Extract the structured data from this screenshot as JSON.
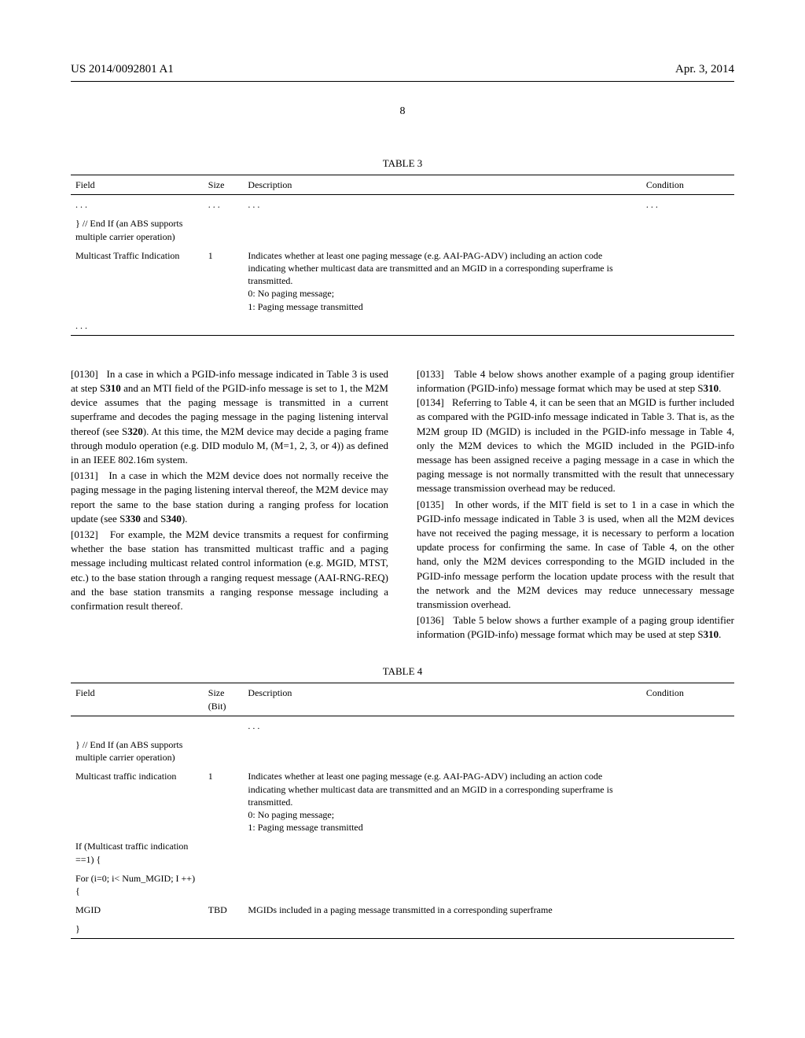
{
  "header": {
    "pub_number": "US 2014/0092801 A1",
    "pub_date": "Apr. 3, 2014",
    "page_number": "8"
  },
  "table3": {
    "caption": "TABLE 3",
    "columns": [
      "Field",
      "Size",
      "Description",
      "Condition"
    ],
    "rows": [
      {
        "field": ". . .",
        "size": ". . .",
        "desc": ". . .",
        "cond": ". . ."
      },
      {
        "field": "} // End If (an ABS supports multiple carrier operation)",
        "size": "",
        "desc": "",
        "cond": ""
      },
      {
        "field": "Multicast Traffic Indication",
        "size": "1",
        "desc": "Indicates whether at least one paging message (e.g. AAI-PAG-ADV) including an action code indicating whether multicast data are transmitted and an MGID in a corresponding superframe is transmitted.\n0: No paging message;\n1: Paging message transmitted",
        "cond": ""
      },
      {
        "field": ". . .",
        "size": "",
        "desc": "",
        "cond": ""
      }
    ]
  },
  "paragraphs_left": [
    {
      "num": "[0130]",
      "text": "In a case in which a PGID-info message indicated in Table 3 is used at step S310 and an MTI field of the PGID-info message is set to 1, the M2M device assumes that the paging message is transmitted in a current superframe and decodes the paging message in the paging listening interval thereof (see S320). At this time, the M2M device may decide a paging frame through modulo operation (e.g. DID modulo M, (M=1, 2, 3, or 4)) as defined in an IEEE 802.16m system."
    },
    {
      "num": "[0131]",
      "text": "In a case in which the M2M device does not normally receive the paging message in the paging listening interval thereof, the M2M device may report the same to the base station during a ranging profess for location update (see S330 and S340)."
    },
    {
      "num": "[0132]",
      "text": "For example, the M2M device transmits a request for confirming whether the base station has transmitted multicast traffic and a paging message including multicast related control information (e.g. MGID, MTST, etc.) to the base station through a ranging request message (AAI-RNG-REQ) and the base station transmits a ranging response message including a confirmation result thereof."
    },
    {
      "num": "[0133]",
      "text": "Table 4 below shows another example of a paging group identifier information (PGID-info) message format which may be used at step S310."
    }
  ],
  "paragraphs_right": [
    {
      "num": "[0134]",
      "text": "Referring to Table 4, it can be seen that an MGID is further included as compared with the PGID-info message indicated in Table 3. That is, as the M2M group ID (MGID) is included in the PGID-info message in Table 4, only the M2M devices to which the MGID included in the PGID-info message has been assigned receive a paging message in a case in which the paging message is not normally transmitted with the result that unnecessary message transmission overhead may be reduced."
    },
    {
      "num": "[0135]",
      "text": "In other words, if the MIT field is set to 1 in a case in which the PGID-info message indicated in Table 3 is used, when all the M2M devices have not received the paging message, it is necessary to perform a location update process for confirming the same. In case of Table 4, on the other hand, only the M2M devices corresponding to the MGID included in the PGID-info message perform the location update process with the result that the network and the M2M devices may reduce unnecessary message transmission overhead."
    },
    {
      "num": "[0136]",
      "text": "Table 5 below shows a further example of a paging group identifier information (PGID-info) message format which may be used at step S310."
    }
  ],
  "table4": {
    "caption": "TABLE 4",
    "columns": [
      "Field",
      "Size (Bit)",
      "Description",
      "Condition"
    ],
    "rows": [
      {
        "field": "",
        "size": "",
        "desc": ". . .",
        "cond": "",
        "center_desc": true
      },
      {
        "field": "} // End If (an ABS supports multiple carrier operation)",
        "size": "",
        "desc": "",
        "cond": ""
      },
      {
        "field": "Multicast traffic indication",
        "size": "1",
        "desc": "Indicates whether at least one paging message (e.g. AAI-PAG-ADV) including an action code indicating whether multicast data are transmitted and an MGID in a corresponding superframe is transmitted.\n0: No paging message;\n1: Paging message transmitted",
        "cond": ""
      },
      {
        "field": "If (Multicast traffic indication ==1) {",
        "size": "",
        "desc": "",
        "cond": ""
      },
      {
        "field": "For (i=0; i< Num_MGID; I ++) {",
        "size": "",
        "desc": "",
        "cond": ""
      },
      {
        "field": "MGID",
        "size": "TBD",
        "desc": "MGIDs included in a paging message transmitted in a corresponding superframe",
        "cond": ""
      },
      {
        "field": "}",
        "size": "",
        "desc": "",
        "cond": ""
      }
    ]
  }
}
